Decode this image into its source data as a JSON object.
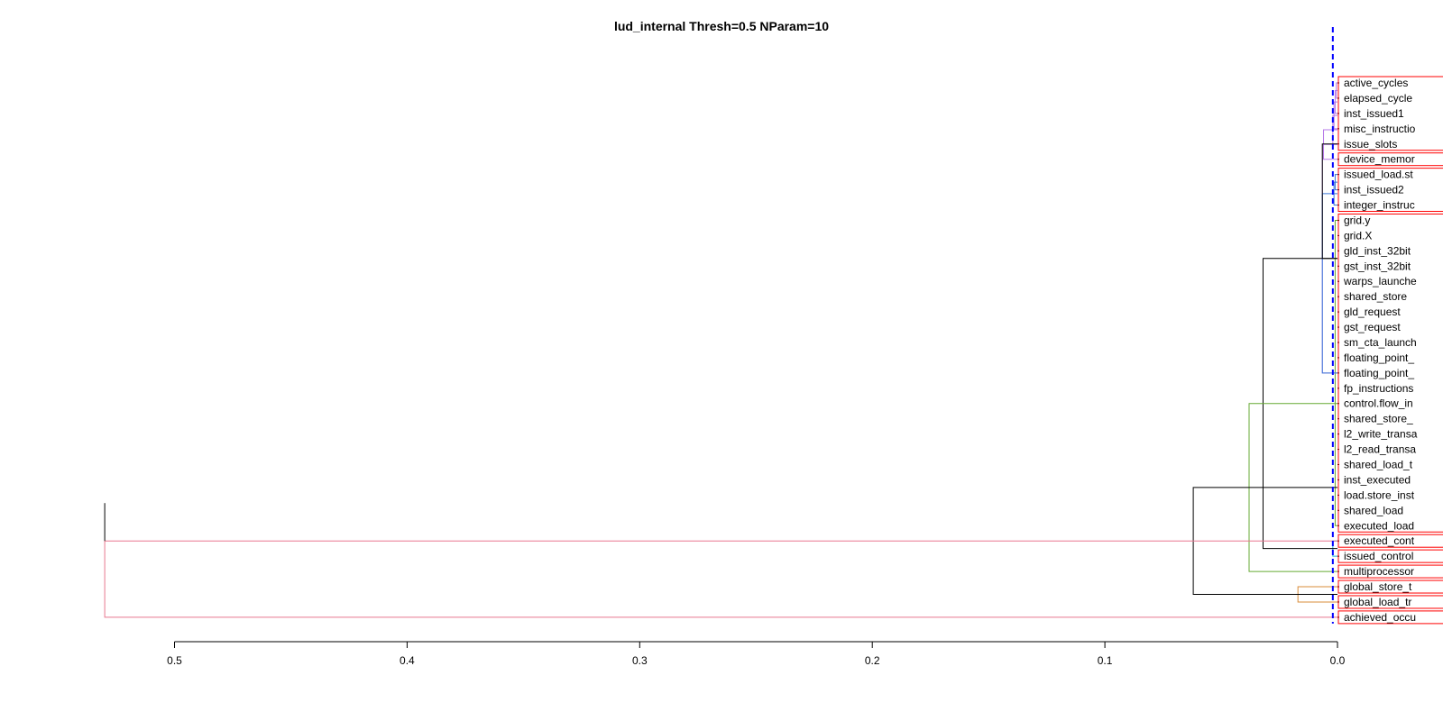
{
  "title": "lud_internal Thresh=0.5 NParam=10",
  "chart_data": {
    "type": "dendrogram",
    "orientation": "horizontal",
    "threshold_line_height": 0.002,
    "axis": {
      "ticks": [
        0.5,
        0.4,
        0.3,
        0.2,
        0.1,
        0.0
      ],
      "tick_labels": [
        "0.5",
        "0.4",
        "0.3",
        "0.2",
        "0.1",
        "0.0"
      ]
    },
    "colors": {
      "tree": "#000000",
      "threshold": "#0000ff",
      "cluster_box": "#ff0000",
      "sub_violet": "#b678e8",
      "sub_blue": "#3c78d8",
      "sub_cyan": "#22b3d6",
      "sub_green": "#66aa33",
      "sub_orange": "#d98c3a",
      "sub_pink": "#e8778f"
    },
    "leaves": [
      "active_cycles",
      "elapsed_cycle",
      "inst_issued1",
      "misc_instructio",
      "issue_slots",
      "device_memor",
      "issued_load.st",
      "inst_issued2",
      "integer_instruc",
      "grid.y",
      "grid.X",
      "gld_inst_32bit",
      "gst_inst_32bit",
      "warps_launche",
      "shared_store",
      "gld_request",
      "gst_request",
      "sm_cta_launch",
      "floating_point_",
      "floating_point_",
      "fp_instructions",
      "control.flow_in",
      "shared_store_",
      "l2_write_transa",
      "l2_read_transa",
      "shared_load_t",
      "inst_executed",
      "load.store_inst",
      "shared_load",
      "executed_load",
      "executed_cont",
      "issued_control",
      "multiprocessor",
      "global_store_t",
      "global_load_tr",
      "achieved_occu"
    ],
    "merges": [
      {
        "pos": [
          0,
          1
        ],
        "height": 0.0005,
        "color": "sub_violet"
      },
      {
        "pos": [
          0.5,
          2
        ],
        "height": 0.001,
        "color": "sub_violet"
      },
      {
        "pos": [
          1.25,
          3
        ],
        "height": 0.0015,
        "color": "sub_violet"
      },
      {
        "pos": [
          2.13,
          4
        ],
        "height": 0.002,
        "color": "sub_violet"
      },
      {
        "pos": [
          6,
          7
        ],
        "height": 0.001,
        "color": "sub_blue"
      },
      {
        "pos": [
          6.5,
          8
        ],
        "height": 0.0015,
        "color": "sub_blue"
      },
      {
        "pos": [
          3.07,
          5
        ],
        "height": 0.006,
        "color": "sub_violet"
      },
      {
        "pos": [
          9,
          29
        ],
        "height": 0.001,
        "color": "sub_green"
      },
      {
        "pos": [
          4.03,
          19
        ],
        "height": 0.0065,
        "color": "sub_violet"
      },
      {
        "pos": [
          7.25,
          19
        ],
        "height": 0.0065,
        "color": "sub_blue"
      },
      {
        "pos": [
          4.0,
          11.5
        ],
        "height": 0.0065,
        "color": "tree"
      },
      {
        "pos": [
          30,
          31
        ],
        "height": 0.002,
        "color": "sub_cyan"
      },
      {
        "pos": [
          11.5,
          30.5
        ],
        "height": 0.032,
        "color": "tree"
      },
      {
        "pos": [
          21.0,
          32
        ],
        "height": 0.038,
        "color": "sub_green"
      },
      {
        "pos": [
          33,
          34
        ],
        "height": 0.017,
        "color": "sub_orange"
      },
      {
        "pos": [
          26.5,
          33.5
        ],
        "height": 0.062,
        "color": "tree"
      },
      {
        "pos": [
          30.0,
          35
        ],
        "height": 0.53,
        "color": "sub_pink"
      }
    ],
    "cluster_boxes": [
      {
        "first": 0,
        "last": 4
      },
      {
        "first": 5,
        "last": 5
      },
      {
        "first": 6,
        "last": 8
      },
      {
        "first": 9,
        "last": 29
      },
      {
        "first": 30,
        "last": 30
      },
      {
        "first": 31,
        "last": 31
      },
      {
        "first": 32,
        "last": 32
      },
      {
        "first": 33,
        "last": 33
      },
      {
        "first": 34,
        "last": 34
      },
      {
        "first": 35,
        "last": 35
      }
    ]
  }
}
